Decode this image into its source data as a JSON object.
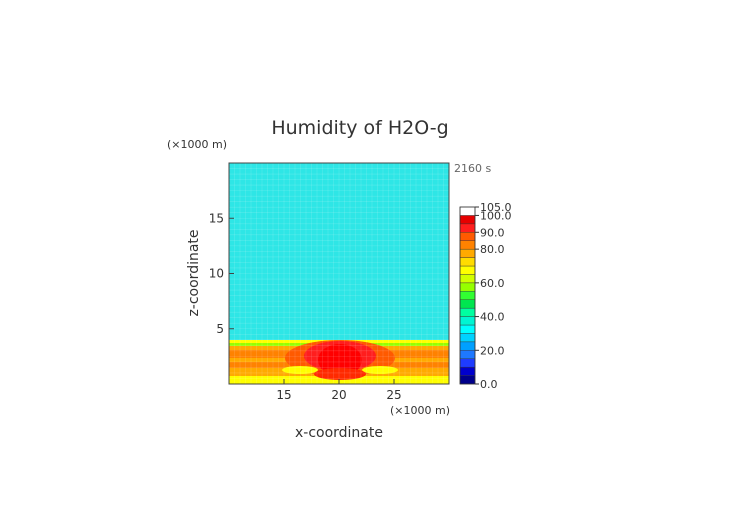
{
  "chart_data": {
    "type": "heatmap",
    "title": "Humidity of H2O-g",
    "xlabel": "x-coordinate",
    "ylabel": "z-coordinate",
    "x_unit": "(×1000 m)",
    "z_unit": "(×1000 m)",
    "time_label": "2160 s",
    "xlim": [
      10,
      30
    ],
    "ylim": [
      0,
      20
    ],
    "xticks": [
      15,
      20,
      25
    ],
    "yticks": [
      5,
      10,
      15
    ],
    "colorbar": {
      "levels": [
        0,
        5,
        10,
        15,
        20,
        25,
        30,
        35,
        40,
        45,
        50,
        55,
        60,
        65,
        70,
        75,
        80,
        85,
        90,
        95,
        100,
        105
      ],
      "colors": [
        "#00008b",
        "#0000cd",
        "#1e3cff",
        "#1e78ff",
        "#00a0ff",
        "#00d2ff",
        "#00ffff",
        "#00f5d2",
        "#00ffa0",
        "#00e650",
        "#32ff32",
        "#96ff00",
        "#d2ff00",
        "#ffff00",
        "#ffdc00",
        "#ffaa00",
        "#ff8200",
        "#ff5a00",
        "#ff1e1e",
        "#e60000",
        "#ffffff"
      ],
      "tick_labels": [
        "0.0",
        "20.0",
        "40.0",
        "60.0",
        "80.0",
        "90.0",
        "100.0",
        "105.0"
      ]
    },
    "field_description_values": {
      "upper_humidity": 37,
      "boundary_layer_top_km": 4,
      "core_max": 100,
      "core_center_x": 20,
      "core_center_z": 2
    }
  }
}
